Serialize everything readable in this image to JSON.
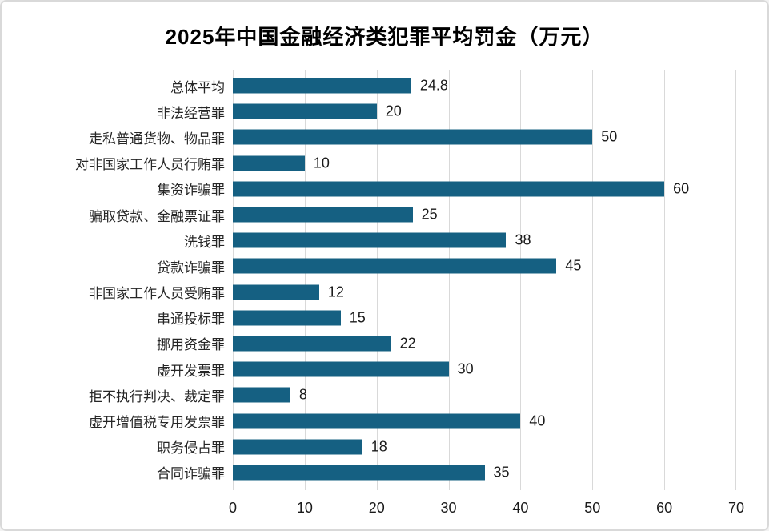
{
  "chart_data": {
    "type": "bar",
    "orientation": "horizontal",
    "title": "2025年中国金融经济类犯罪平均罚金（万元）",
    "categories": [
      "总体平均",
      "非法经营罪",
      "走私普通货物、物品罪",
      "对非国家工作人员行贿罪",
      "集资诈骗罪",
      "骗取贷款、金融票证罪",
      "洗钱罪",
      "贷款诈骗罪",
      "非国家工作人员受贿罪",
      "串通投标罪",
      "挪用资金罪",
      "虚开发票罪",
      "拒不执行判决、裁定罪",
      "虚开增值税专用发票罪",
      "职务侵占罪",
      "合同诈骗罪"
    ],
    "values": [
      24.8,
      20,
      50,
      10,
      60,
      25,
      38,
      45,
      12,
      15,
      22,
      30,
      8,
      40,
      18,
      35
    ],
    "value_labels": [
      "24.8",
      "20",
      "50",
      "10",
      "60",
      "25",
      "38",
      "45",
      "12",
      "15",
      "22",
      "30",
      "8",
      "40",
      "18",
      "35"
    ],
    "xlabel": "",
    "ylabel": "",
    "xlim": [
      0,
      70
    ],
    "x_ticks": [
      "0",
      "10",
      "20",
      "30",
      "40",
      "50",
      "60",
      "70"
    ],
    "grid": "vertical",
    "legend": "none",
    "bar_color": "#156082",
    "gridline_color": "#d9d9d9"
  }
}
